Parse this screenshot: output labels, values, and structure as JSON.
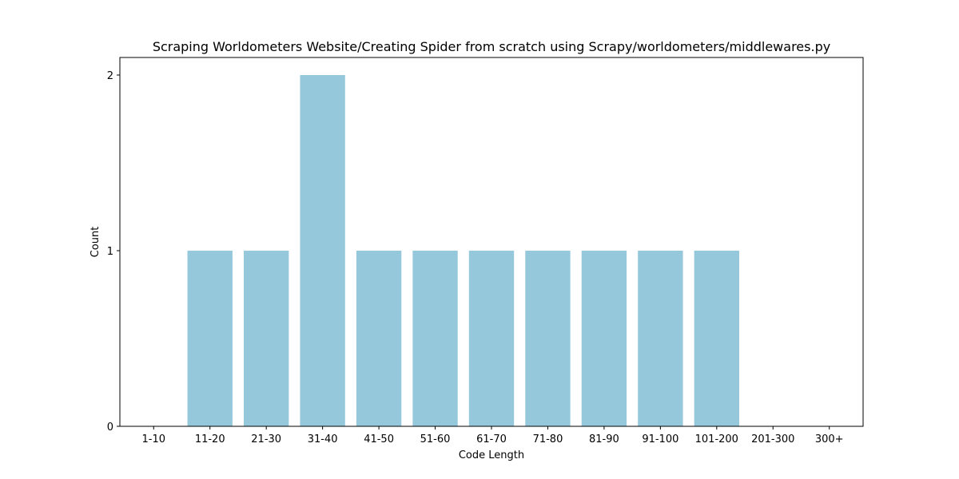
{
  "chart_data": {
    "type": "bar",
    "title": "Scraping Worldometers Website/Creating Spider from scratch using Scrapy/worldometers/middlewares.py",
    "xlabel": "Code Length",
    "ylabel": "Count",
    "categories": [
      "1-10",
      "11-20",
      "21-30",
      "31-40",
      "41-50",
      "51-60",
      "61-70",
      "71-80",
      "81-90",
      "91-100",
      "101-200",
      "201-300",
      "300+"
    ],
    "values": [
      0,
      1,
      1,
      2,
      1,
      1,
      1,
      1,
      1,
      1,
      1,
      0,
      0
    ],
    "ylim": [
      0,
      2
    ],
    "yticks": [
      "0",
      "1",
      "2"
    ],
    "grid": false,
    "bar_color": "#96c8dc"
  }
}
